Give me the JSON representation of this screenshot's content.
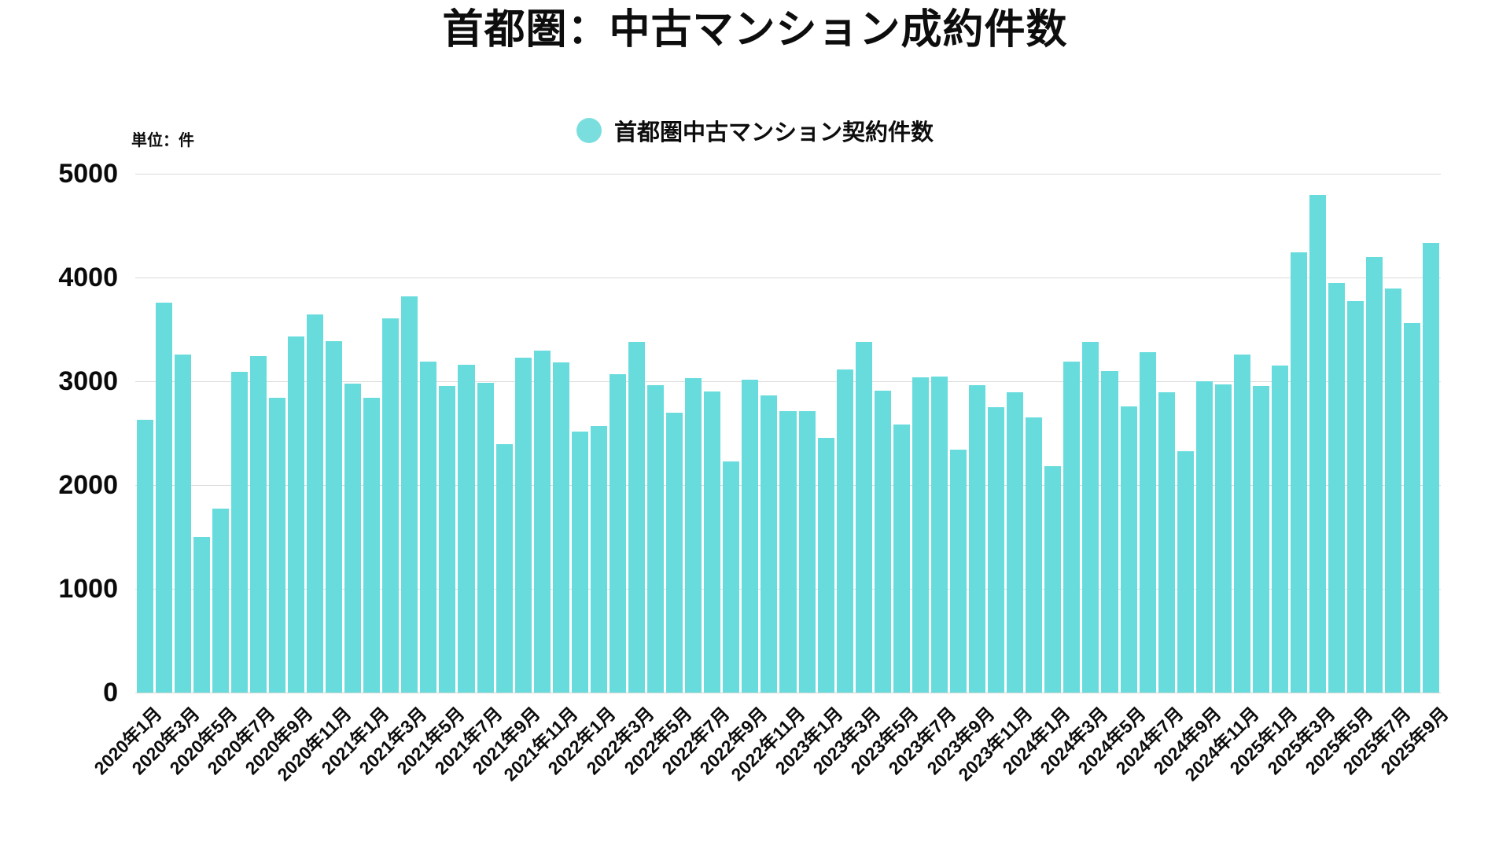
{
  "page": {
    "background": "#ffffff"
  },
  "title": "首都圏：中古マンション成約件数",
  "unit_label": "単位：件",
  "legend": {
    "label": "首都圏中古マンション契約件数",
    "marker_color": "#7bdede"
  },
  "chart_data": {
    "type": "bar",
    "title": "首都圏：中古マンション成約件数",
    "series_name": "首都圏中古マンション契約件数",
    "unit": "件",
    "bar_color": "#68dcdd",
    "grid": true,
    "legend_position": "top-center",
    "ylabel": "",
    "xlabel": "",
    "ylim": [
      0,
      5000
    ],
    "yticks": [
      0,
      1000,
      2000,
      3000,
      4000,
      5000
    ],
    "xtick_every": 2,
    "categories": [
      "2020年1月",
      "2020年2月",
      "2020年3月",
      "2020年4月",
      "2020年5月",
      "2020年6月",
      "2020年7月",
      "2020年8月",
      "2020年9月",
      "2020年10月",
      "2020年11月",
      "2020年12月",
      "2021年1月",
      "2021年2月",
      "2021年3月",
      "2021年4月",
      "2021年5月",
      "2021年6月",
      "2021年7月",
      "2021年8月",
      "2021年9月",
      "2021年10月",
      "2021年11月",
      "2021年12月",
      "2022年1月",
      "2022年2月",
      "2022年3月",
      "2022年4月",
      "2022年5月",
      "2022年6月",
      "2022年7月",
      "2022年8月",
      "2022年9月",
      "2022年10月",
      "2022年11月",
      "2022年12月",
      "2023年1月",
      "2023年2月",
      "2023年3月",
      "2023年4月",
      "2023年5月",
      "2023年6月",
      "2023年7月",
      "2023年8月",
      "2023年9月",
      "2023年10月",
      "2023年11月",
      "2023年12月",
      "2024年1月",
      "2024年2月",
      "2024年3月",
      "2024年4月",
      "2024年5月",
      "2024年6月",
      "2024年7月",
      "2024年8月",
      "2024年9月",
      "2024年10月",
      "2024年11月",
      "2024年12月",
      "2025年1月",
      "2025年2月",
      "2025年3月",
      "2025年4月",
      "2025年5月",
      "2025年6月",
      "2025年7月",
      "2025年8月",
      "2025年9月"
    ],
    "values": [
      2632,
      3756,
      3254,
      1498,
      1771,
      3088,
      3243,
      2842,
      3434,
      3645,
      3390,
      2974,
      2841,
      3605,
      3818,
      3191,
      2952,
      3160,
      2982,
      2393,
      3228,
      3294,
      3184,
      2512,
      2566,
      3066,
      3379,
      2963,
      2694,
      3033,
      2903,
      2224,
      3019,
      2863,
      2715,
      2714,
      2453,
      3113,
      3382,
      2909,
      2582,
      3037,
      3049,
      2340,
      2962,
      2750,
      2896,
      2648,
      2181,
      3186,
      3376,
      3096,
      2756,
      3281,
      2891,
      2327,
      3000,
      2972,
      3254,
      2958,
      3150,
      4246,
      4797,
      3948,
      3775,
      4196,
      3892,
      3559,
      4332
    ]
  }
}
